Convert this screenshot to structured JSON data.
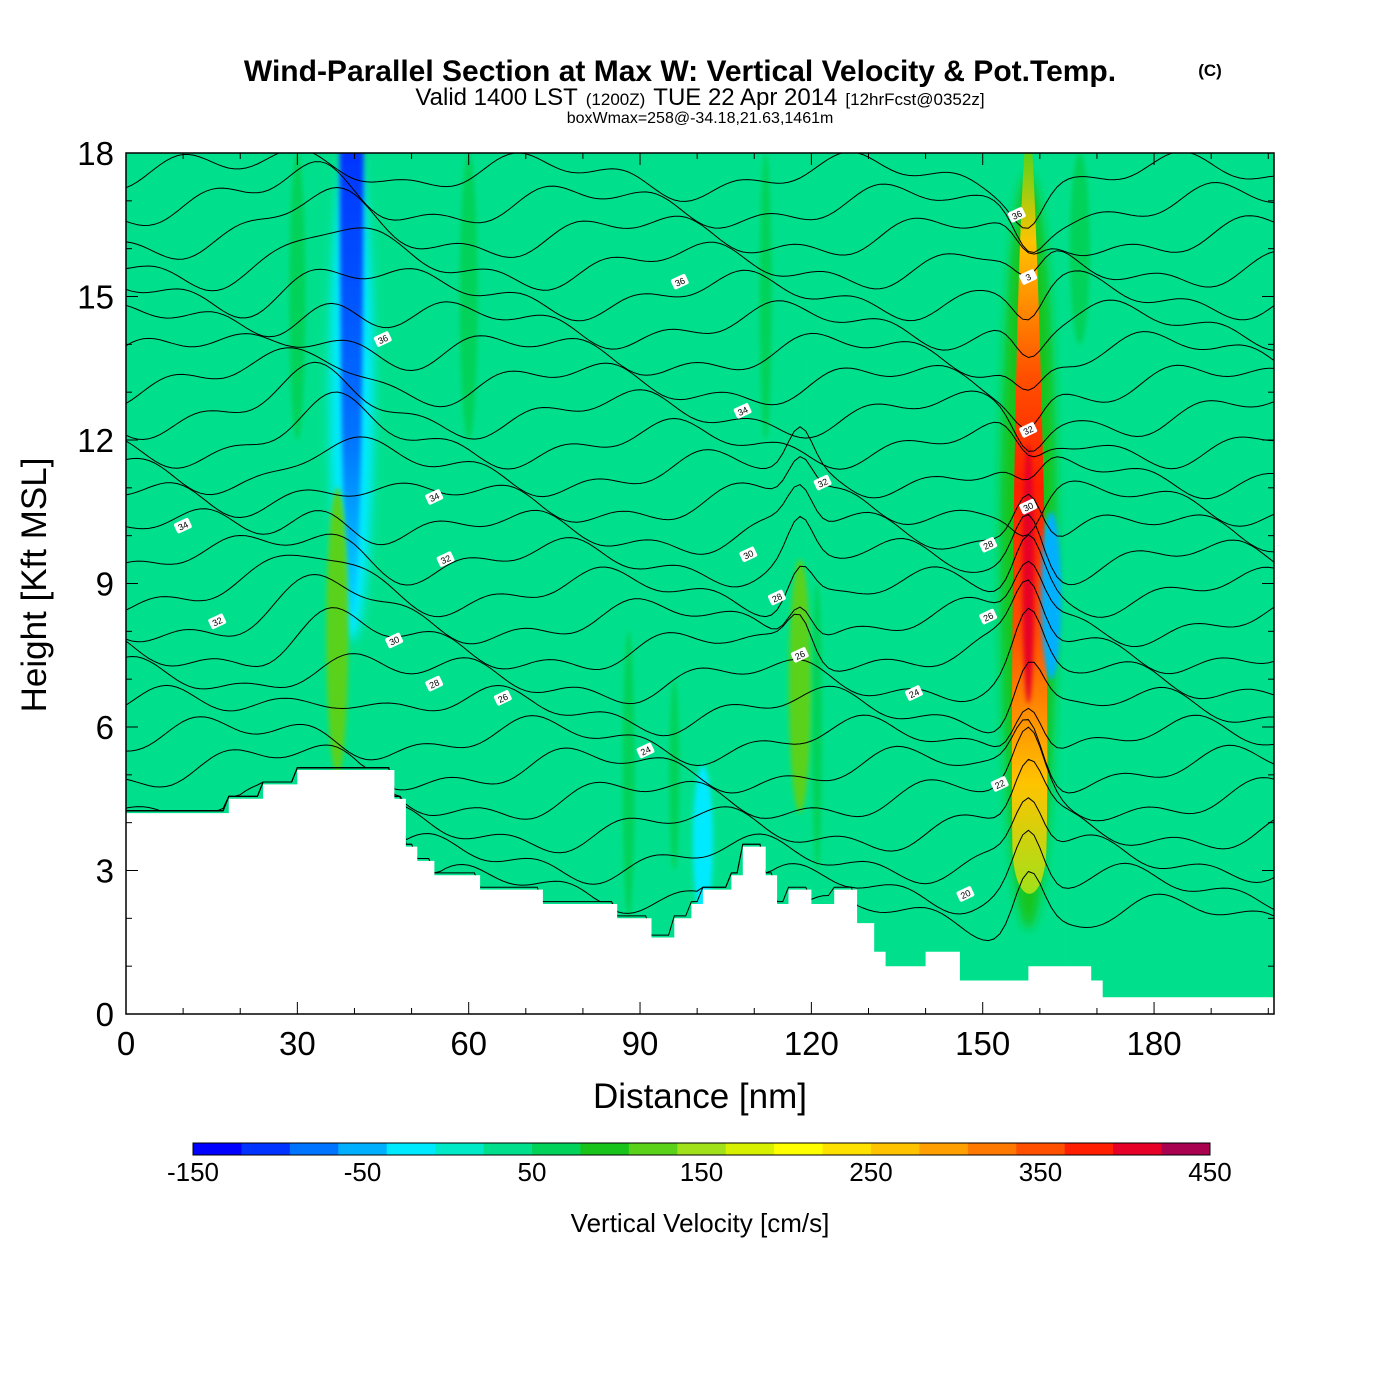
{
  "chart_data": {
    "type": "heatmap",
    "title": "Wind-Parallel Section at Max W: Vertical Velocity & Pot.Temp.",
    "title_mark": "(C)",
    "subtitle": {
      "main_a": "Valid 1400 LST",
      "small_a": "(1200Z)",
      "main_b": "TUE 22 Apr 2014",
      "small_b": "[12hrFcst@0352z]"
    },
    "note": "boxWmax=258@-34.18,21.63,1461m",
    "xlabel": "Distance [nm]",
    "ylabel": "Height [Kft MSL]",
    "xlim": [
      0,
      201
    ],
    "ylim": [
      0,
      18
    ],
    "xticks": [
      0,
      30,
      60,
      90,
      120,
      150,
      180
    ],
    "yticks": [
      0,
      3,
      6,
      9,
      12,
      15,
      18
    ],
    "colorbar": {
      "label": "Vertical Velocity [cm/s]",
      "min": -150,
      "max": 450,
      "step": 25,
      "tick_labels": [
        -150,
        -50,
        50,
        150,
        250,
        350,
        450
      ],
      "colors": [
        "#0000ff",
        "#0033ff",
        "#0073ff",
        "#00b0ff",
        "#00eaff",
        "#00eac8",
        "#00e08c",
        "#00d25a",
        "#19c41a",
        "#5ad21a",
        "#a0e11a",
        "#d7f000",
        "#ffff00",
        "#ffe100",
        "#ffc300",
        "#ffa000",
        "#ff7800",
        "#ff5000",
        "#ff1e00",
        "#e60028",
        "#aa0050"
      ]
    },
    "terrain_kft": [
      [
        0,
        4.2
      ],
      [
        18,
        4.2
      ],
      [
        18,
        4.5
      ],
      [
        24,
        4.5
      ],
      [
        24,
        4.8
      ],
      [
        30,
        4.8
      ],
      [
        30,
        5.1
      ],
      [
        47,
        5.1
      ],
      [
        47,
        4.5
      ],
      [
        49,
        4.5
      ],
      [
        49,
        3.5
      ],
      [
        51,
        3.5
      ],
      [
        51,
        3.2
      ],
      [
        54,
        3.2
      ],
      [
        54,
        2.9
      ],
      [
        62,
        2.9
      ],
      [
        62,
        2.6
      ],
      [
        73,
        2.6
      ],
      [
        73,
        2.3
      ],
      [
        86,
        2.3
      ],
      [
        86,
        2.0
      ],
      [
        92,
        2.0
      ],
      [
        92,
        1.6
      ],
      [
        96,
        1.6
      ],
      [
        96,
        2.0
      ],
      [
        99,
        2.0
      ],
      [
        99,
        2.3
      ],
      [
        101,
        2.3
      ],
      [
        101,
        2.6
      ],
      [
        106,
        2.6
      ],
      [
        106,
        2.9
      ],
      [
        108,
        2.9
      ],
      [
        108,
        3.5
      ],
      [
        112,
        3.5
      ],
      [
        112,
        2.9
      ],
      [
        114,
        2.9
      ],
      [
        114,
        2.3
      ],
      [
        116,
        2.3
      ],
      [
        116,
        2.6
      ],
      [
        120,
        2.6
      ],
      [
        120,
        2.3
      ],
      [
        124,
        2.3
      ],
      [
        124,
        2.6
      ],
      [
        128,
        2.6
      ],
      [
        128,
        1.9
      ],
      [
        131,
        1.9
      ],
      [
        131,
        1.3
      ],
      [
        133,
        1.3
      ],
      [
        133,
        1.0
      ],
      [
        140,
        1.0
      ],
      [
        140,
        1.3
      ],
      [
        146,
        1.3
      ],
      [
        146,
        0.7
      ],
      [
        158,
        0.7
      ],
      [
        158,
        1.0
      ],
      [
        169,
        1.0
      ],
      [
        169,
        0.7
      ],
      [
        171,
        0.7
      ],
      [
        171,
        0.35
      ],
      [
        201,
        0.35
      ]
    ],
    "w_features": [
      {
        "x": 39.5,
        "y_bottom": 8.0,
        "y_top": 18.0,
        "w_cm_s": -135
      },
      {
        "x": 37.0,
        "y_bottom": 5.0,
        "y_top": 11.0,
        "w_cm_s": 75
      },
      {
        "x": 118.0,
        "y_bottom": 4.2,
        "y_top": 9.5,
        "w_cm_s": 75
      },
      {
        "x": 158.0,
        "y_bottom": 2.2,
        "y_top": 18.0,
        "w_cm_s": 258
      },
      {
        "x": 162.0,
        "y_bottom": 7.0,
        "y_top": 10.5,
        "w_cm_s": -75
      },
      {
        "x": 101.0,
        "y_bottom": 2.0,
        "y_top": 5.2,
        "w_cm_s": -45
      }
    ],
    "isentrope_labels": [
      {
        "text": "34",
        "x": 10,
        "y": 10.2
      },
      {
        "text": "32",
        "x": 16,
        "y": 8.2
      },
      {
        "text": "36",
        "x": 45,
        "y": 14.1
      },
      {
        "text": "34",
        "x": 54,
        "y": 10.8
      },
      {
        "text": "32",
        "x": 56,
        "y": 9.5
      },
      {
        "text": "30",
        "x": 47,
        "y": 7.8
      },
      {
        "text": "28",
        "x": 54,
        "y": 6.9
      },
      {
        "text": "26",
        "x": 66,
        "y": 6.6
      },
      {
        "text": "24",
        "x": 91,
        "y": 5.5
      },
      {
        "text": "36",
        "x": 97,
        "y": 15.3
      },
      {
        "text": "34",
        "x": 108,
        "y": 12.6
      },
      {
        "text": "32",
        "x": 122,
        "y": 11.1
      },
      {
        "text": "30",
        "x": 109,
        "y": 9.6
      },
      {
        "text": "28",
        "x": 114,
        "y": 8.7
      },
      {
        "text": "26",
        "x": 118,
        "y": 7.5
      },
      {
        "text": "24",
        "x": 138,
        "y": 6.7
      },
      {
        "text": "28",
        "x": 151,
        "y": 9.8
      },
      {
        "text": "26",
        "x": 151,
        "y": 8.3
      },
      {
        "text": "22",
        "x": 153,
        "y": 4.8
      },
      {
        "text": "20",
        "x": 147,
        "y": 2.5
      },
      {
        "text": "36",
        "x": 156,
        "y": 16.7
      },
      {
        "text": "3",
        "x": 158,
        "y": 15.4
      },
      {
        "text": "32",
        "x": 158,
        "y": 12.2
      },
      {
        "text": "30",
        "x": 158,
        "y": 10.6
      }
    ]
  }
}
